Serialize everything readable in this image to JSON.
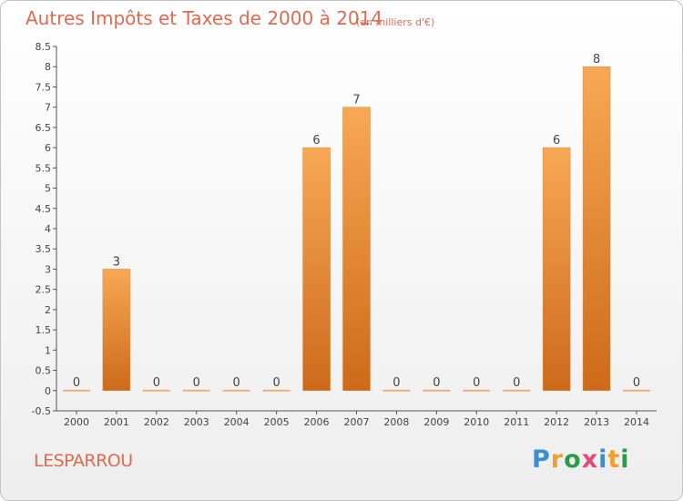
{
  "header": {
    "title": "Autres Impôts et Taxes de 2000 à 2014",
    "unit": "(en milliers d'€)"
  },
  "footer": {
    "commune": "LESPARROU",
    "logo_letters": [
      "P",
      "r",
      "o",
      "x",
      "i",
      "t",
      "i"
    ],
    "logo_colors": [
      "#3a8fd0",
      "#f0a030",
      "#2a9d4a",
      "#e04a7a",
      "#3a8fd0",
      "#f0a030",
      "#2a9d4a"
    ]
  },
  "chart_data": {
    "type": "bar",
    "categories": [
      "2000",
      "2001",
      "2002",
      "2003",
      "2004",
      "2005",
      "2006",
      "2007",
      "2008",
      "2009",
      "2010",
      "2011",
      "2012",
      "2013",
      "2014"
    ],
    "values": [
      0,
      3,
      0,
      0,
      0,
      0,
      6,
      7,
      0,
      0,
      0,
      0,
      6,
      8,
      0
    ],
    "data_labels": [
      "0",
      "3",
      "0",
      "0",
      "0",
      "0",
      "6",
      "7",
      "0",
      "0",
      "0",
      "0",
      "6",
      "8",
      "0"
    ],
    "yticks": [
      "-0.5",
      "0",
      "0.5",
      "1",
      "1.5",
      "2",
      "2.5",
      "3",
      "3.5",
      "4",
      "4.5",
      "5",
      "5.5",
      "6",
      "6.5",
      "7",
      "7.5",
      "8",
      "8.5"
    ],
    "ylim": [
      -0.5,
      8.5
    ],
    "grid": false,
    "colors": {
      "bar_top": "#f8a855",
      "bar_bottom": "#cc6a1a",
      "zero_bar": "#f0b080",
      "axis": "#555555"
    }
  }
}
